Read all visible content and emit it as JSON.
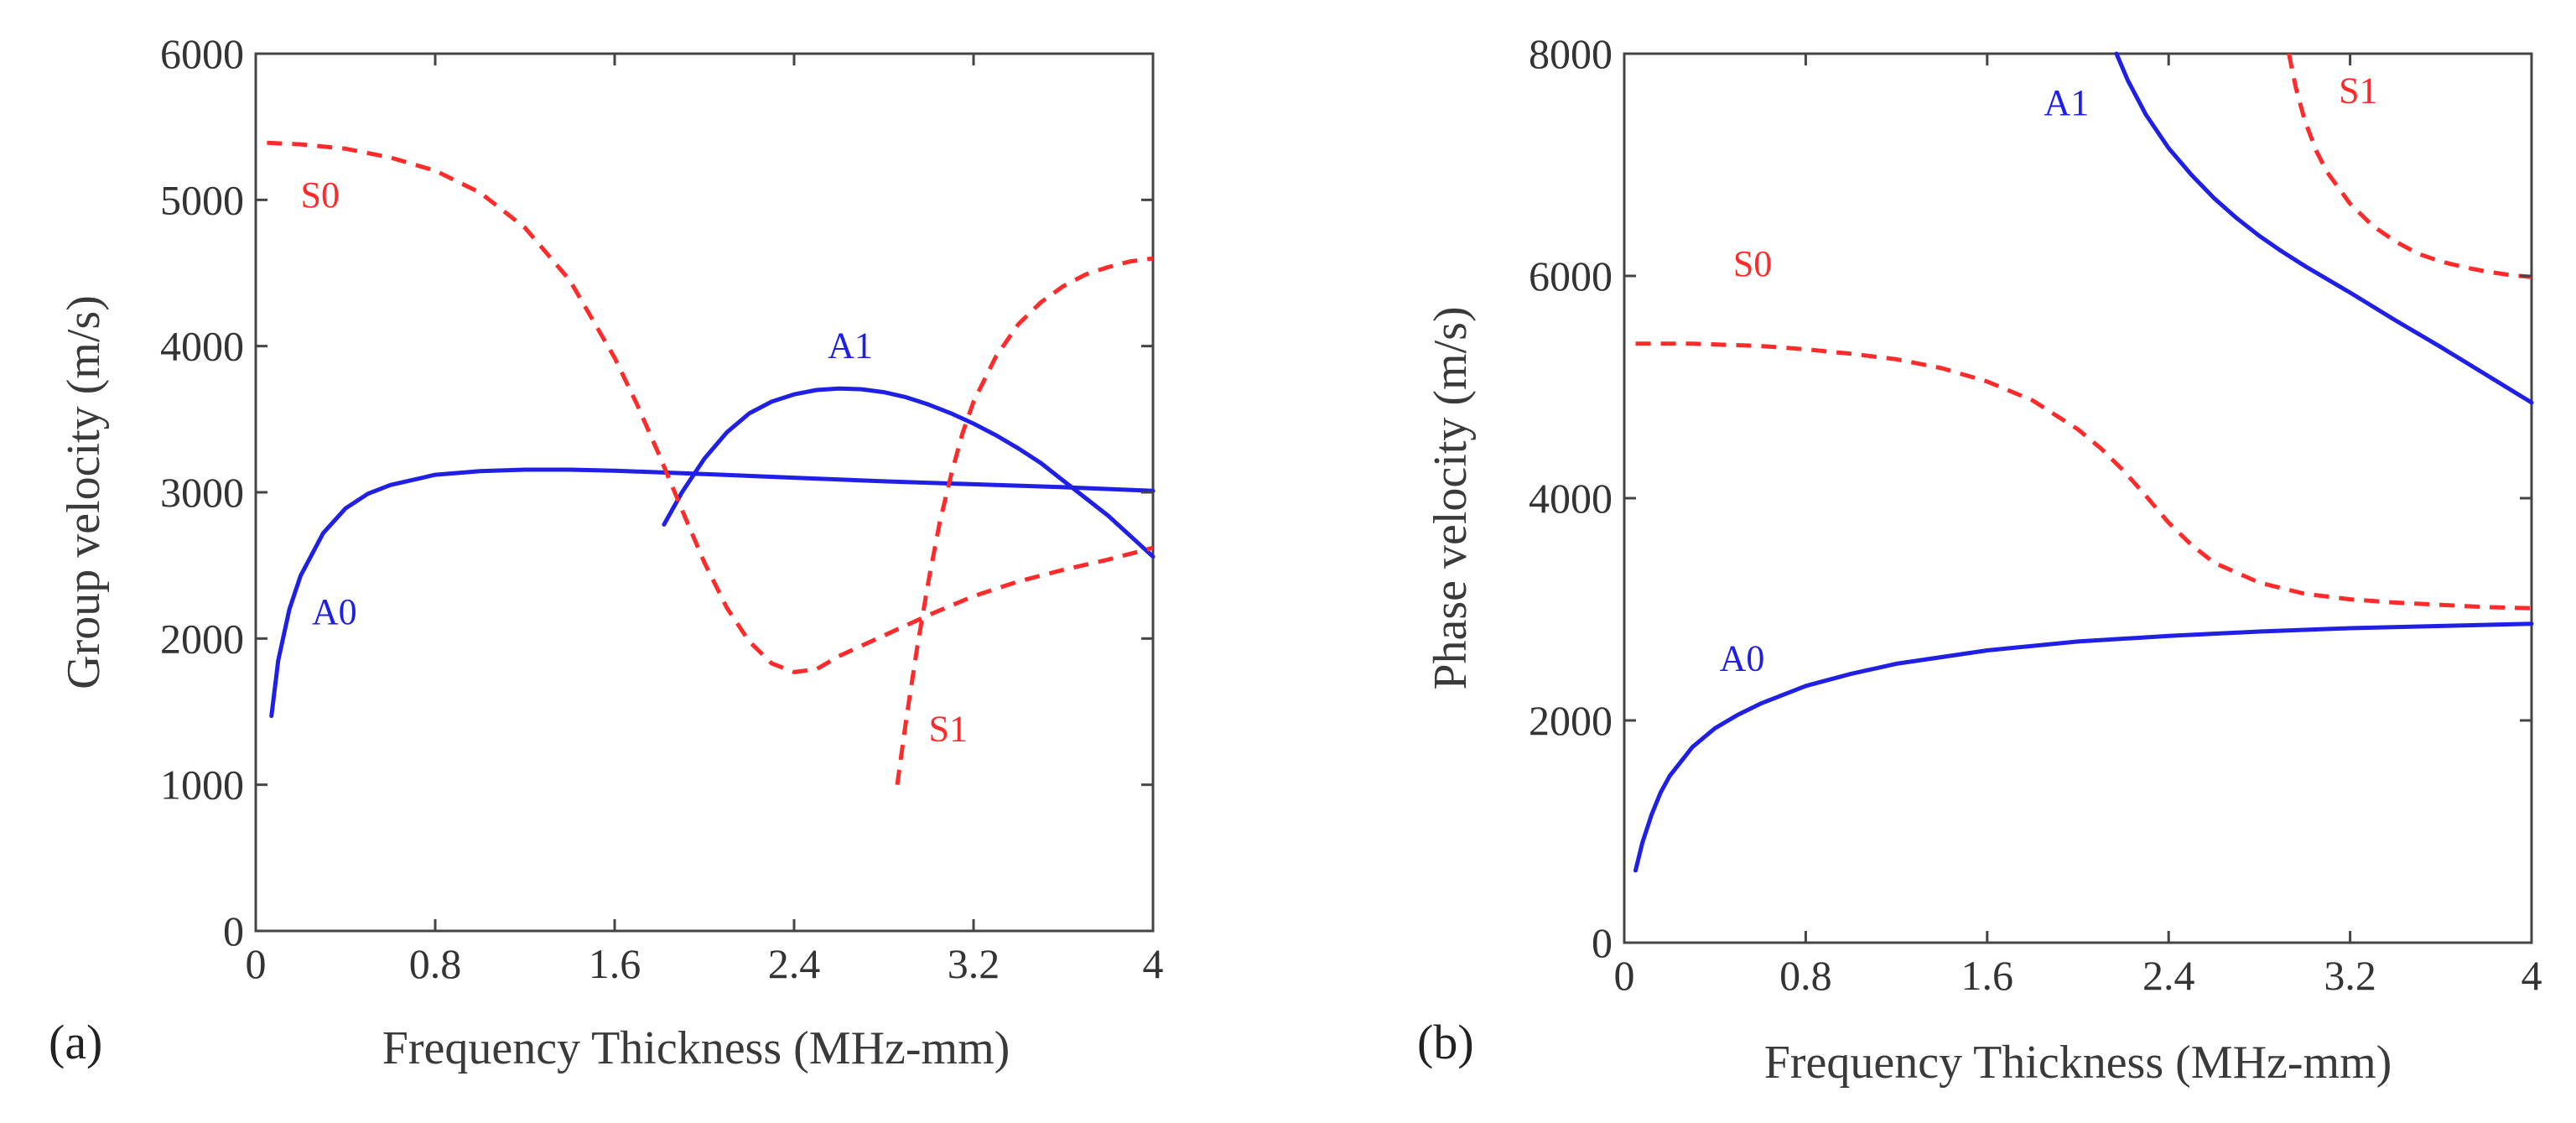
{
  "chart_data": [
    {
      "type": "line",
      "panel_label": "(a)",
      "xlabel": "Frequency Thickness (MHz-mm)",
      "ylabel": "Group velocity (m/s)",
      "xlim": [
        0,
        4
      ],
      "ylim": [
        0,
        6000
      ],
      "xticks": [
        0,
        0.8,
        1.6,
        2.4,
        3.2,
        4
      ],
      "xtick_labels": [
        "0",
        "0.8",
        "1.6",
        "2.4",
        "3.2",
        "4"
      ],
      "yticks": [
        0,
        1000,
        2000,
        3000,
        4000,
        5000,
        6000
      ],
      "ytick_labels": [
        "0",
        "1000",
        "2000",
        "3000",
        "4000",
        "5000",
        "6000"
      ],
      "grid": false,
      "series": [
        {
          "name": "A0",
          "color": "#1f1fe6",
          "style": "solid",
          "label_at": [
            0.25,
            2100
          ],
          "x": [
            0.07,
            0.1,
            0.15,
            0.2,
            0.3,
            0.4,
            0.5,
            0.6,
            0.8,
            1.0,
            1.2,
            1.4,
            1.6,
            2.0,
            2.4,
            2.8,
            3.2,
            3.6,
            4.0
          ],
          "y": [
            1470,
            1850,
            2200,
            2430,
            2720,
            2890,
            2990,
            3050,
            3120,
            3145,
            3155,
            3155,
            3148,
            3125,
            3100,
            3075,
            3055,
            3035,
            3010
          ]
        },
        {
          "name": "A1",
          "color": "#1f1fe6",
          "style": "solid",
          "label_at": [
            2.55,
            3920
          ],
          "x": [
            1.82,
            1.9,
            2.0,
            2.1,
            2.2,
            2.3,
            2.4,
            2.5,
            2.6,
            2.7,
            2.8,
            2.9,
            3.0,
            3.1,
            3.2,
            3.3,
            3.4,
            3.5,
            3.6,
            3.7,
            3.8,
            3.9,
            4.0
          ],
          "y": [
            2780,
            3000,
            3230,
            3410,
            3540,
            3620,
            3670,
            3700,
            3710,
            3705,
            3685,
            3650,
            3600,
            3540,
            3470,
            3390,
            3300,
            3200,
            3080,
            2960,
            2840,
            2700,
            2560
          ]
        },
        {
          "name": "S0",
          "color": "#ff2a2a",
          "style": "dashed",
          "label_at": [
            0.2,
            4950
          ],
          "x": [
            0.05,
            0.2,
            0.4,
            0.6,
            0.8,
            1.0,
            1.2,
            1.4,
            1.6,
            1.7,
            1.8,
            1.9,
            2.0,
            2.1,
            2.2,
            2.3,
            2.4,
            2.5,
            2.6,
            2.8,
            3.0,
            3.2,
            3.4,
            3.6,
            3.8,
            4.0
          ],
          "y": [
            5390,
            5380,
            5350,
            5290,
            5200,
            5050,
            4810,
            4450,
            3920,
            3600,
            3250,
            2880,
            2520,
            2210,
            1980,
            1830,
            1770,
            1790,
            1880,
            2020,
            2160,
            2290,
            2390,
            2470,
            2540,
            2620
          ]
        },
        {
          "name": "S1",
          "color": "#ff2a2a",
          "style": "dashed",
          "label_at": [
            3.0,
            1300
          ],
          "x": [
            2.86,
            2.9,
            2.95,
            3.0,
            3.05,
            3.1,
            3.15,
            3.2,
            3.3,
            3.4,
            3.5,
            3.6,
            3.7,
            3.8,
            3.9,
            4.0
          ],
          "y": [
            1000,
            1450,
            1950,
            2400,
            2800,
            3120,
            3400,
            3620,
            3930,
            4150,
            4300,
            4410,
            4490,
            4540,
            4580,
            4600
          ]
        }
      ]
    },
    {
      "type": "line",
      "panel_label": "(b)",
      "xlabel": "Frequency Thickness (MHz-mm)",
      "ylabel": "Phase velocity (m/s)",
      "xlim": [
        0,
        4
      ],
      "ylim": [
        0,
        8000
      ],
      "xticks": [
        0,
        0.8,
        1.6,
        2.4,
        3.2,
        4
      ],
      "xtick_labels": [
        "0",
        "0.8",
        "1.6",
        "2.4",
        "3.2",
        "4"
      ],
      "yticks": [
        0,
        2000,
        4000,
        6000,
        8000
      ],
      "ytick_labels": [
        "0",
        "2000",
        "4000",
        "6000",
        "8000"
      ],
      "grid": false,
      "series": [
        {
          "name": "A0",
          "color": "#1f1fe6",
          "style": "solid",
          "label_at": [
            0.42,
            2450
          ],
          "x": [
            0.05,
            0.08,
            0.12,
            0.16,
            0.2,
            0.3,
            0.4,
            0.5,
            0.6,
            0.8,
            1.0,
            1.2,
            1.6,
            2.0,
            2.4,
            2.8,
            3.2,
            3.6,
            4.0
          ],
          "y": [
            650,
            900,
            1150,
            1350,
            1500,
            1760,
            1930,
            2050,
            2150,
            2310,
            2420,
            2510,
            2630,
            2710,
            2760,
            2800,
            2830,
            2850,
            2870
          ]
        },
        {
          "name": "A1",
          "color": "#1f1fe6",
          "style": "solid",
          "label_at": [
            1.85,
            7450
          ],
          "x": [
            2.17,
            2.22,
            2.3,
            2.4,
            2.5,
            2.6,
            2.7,
            2.8,
            2.9,
            3.0,
            3.2,
            3.4,
            3.6,
            3.8,
            4.0
          ],
          "y": [
            8000,
            7760,
            7450,
            7150,
            6910,
            6700,
            6520,
            6360,
            6220,
            6090,
            5850,
            5600,
            5360,
            5110,
            4860
          ]
        },
        {
          "name": "S0",
          "color": "#ff2a2a",
          "style": "dashed",
          "label_at": [
            0.48,
            6000
          ],
          "x": [
            0.05,
            0.3,
            0.6,
            0.8,
            1.0,
            1.2,
            1.4,
            1.6,
            1.8,
            2.0,
            2.1,
            2.2,
            2.3,
            2.4,
            2.5,
            2.6,
            2.8,
            3.0,
            3.2,
            3.4,
            3.6,
            3.8,
            4.0
          ],
          "y": [
            5390,
            5390,
            5370,
            5340,
            5300,
            5250,
            5170,
            5050,
            4880,
            4620,
            4450,
            4250,
            4020,
            3780,
            3580,
            3420,
            3240,
            3140,
            3090,
            3060,
            3040,
            3020,
            3010
          ]
        },
        {
          "name": "S1",
          "color": "#ff2a2a",
          "style": "dashed",
          "label_at": [
            3.15,
            7560
          ],
          "x": [
            2.93,
            2.96,
            3.0,
            3.05,
            3.1,
            3.2,
            3.3,
            3.4,
            3.5,
            3.6,
            3.7,
            3.8,
            3.9,
            4.0
          ],
          "y": [
            8000,
            7700,
            7400,
            7130,
            6930,
            6650,
            6450,
            6310,
            6200,
            6130,
            6080,
            6040,
            6010,
            5990
          ]
        }
      ]
    }
  ]
}
